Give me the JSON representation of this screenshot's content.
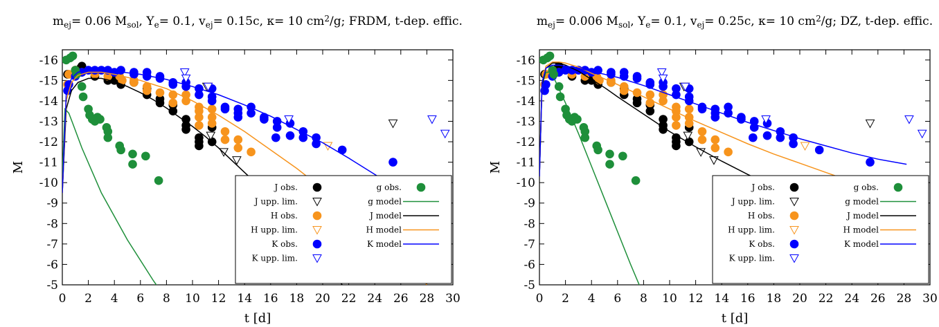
{
  "chart_data": [
    {
      "type": "scatter",
      "title": {
        "m": "m",
        "m_sub": "ej",
        "m_val": "= 0.06 M",
        "m_unit_sub": "sol",
        "ye": ", Y",
        "ye_sub": "e",
        "ye_val": "= 0.1, v",
        "v_sub": "ej",
        "rest": "= 0.15c, κ= 10 cm",
        "sup": "2",
        "tail": "/g; FRDM, t-dep. effic."
      },
      "xlabel": "t [d]",
      "ylabel": "M",
      "xlim": [
        0,
        30
      ],
      "ylim": [
        -16.5,
        -5
      ],
      "y_reversed": true,
      "xticks": [
        0,
        2,
        4,
        6,
        8,
        10,
        12,
        14,
        16,
        18,
        20,
        22,
        24,
        26,
        28,
        30
      ],
      "yticks": [
        -16,
        -15,
        -14,
        -13,
        -12,
        -11,
        -10,
        -9,
        -8,
        -7,
        -6,
        -5
      ],
      "legend": {
        "placement": "bottom-right",
        "left": [
          {
            "label": "J obs.",
            "kind": "dot",
            "color": "#000000"
          },
          {
            "label": "J upp. lim.",
            "kind": "tri",
            "color": "#000000"
          },
          {
            "label": "H obs.",
            "kind": "dot",
            "color": "#f7941d"
          },
          {
            "label": "H upp. lim.",
            "kind": "tri",
            "color": "#f7941d"
          },
          {
            "label": "K obs.",
            "kind": "dot",
            "color": "#0000ff"
          },
          {
            "label": "K upp. lim.",
            "kind": "tri",
            "color": "#0000ff"
          }
        ],
        "right": [
          {
            "label": "g obs.",
            "kind": "dot",
            "color": "#1e8f3a"
          },
          {
            "label": "g model",
            "kind": "line",
            "color": "#1e8f3a"
          },
          {
            "label": "J model",
            "kind": "line",
            "color": "#000000"
          },
          {
            "label": "H model",
            "kind": "line",
            "color": "#f7941d"
          },
          {
            "label": "K model",
            "kind": "line",
            "color": "#0000ff"
          }
        ]
      },
      "models": [
        {
          "name": "g model",
          "color": "#1e8f3a",
          "x": [
            0,
            0.2,
            0.5,
            0.8,
            1.5,
            3,
            5,
            7,
            8
          ],
          "y": [
            -10.3,
            -13.6,
            -13.4,
            -12.9,
            -11.7,
            -9.5,
            -7.2,
            -5.2,
            -4.3
          ]
        },
        {
          "name": "J model",
          "color": "#000000",
          "x": [
            0,
            0.3,
            0.7,
            1.2,
            2,
            3,
            4,
            5,
            6,
            7,
            8,
            9,
            10,
            11,
            12,
            13,
            14,
            15,
            16,
            17,
            18,
            19,
            20,
            21,
            22
          ],
          "y": [
            -9.5,
            -13.6,
            -14.5,
            -14.9,
            -15.1,
            -15.1,
            -14.95,
            -14.7,
            -14.4,
            -14.05,
            -13.65,
            -13.2,
            -12.75,
            -12.25,
            -11.7,
            -11.1,
            -10.5,
            -9.9,
            -9.2,
            -8.5,
            -7.8,
            -7.0,
            -6.2,
            -5.4,
            -4.6
          ]
        },
        {
          "name": "H model",
          "color": "#f7941d",
          "x": [
            0,
            0.3,
            0.7,
            1.2,
            2,
            3,
            4,
            6,
            8,
            10,
            12,
            14,
            16,
            18,
            20,
            22,
            24,
            26,
            28
          ],
          "y": [
            -9.5,
            -14.0,
            -14.9,
            -15.25,
            -15.4,
            -15.4,
            -15.3,
            -15.0,
            -14.6,
            -14.0,
            -13.3,
            -12.5,
            -11.6,
            -10.7,
            -9.7,
            -8.7,
            -7.6,
            -6.5,
            -5.0
          ]
        },
        {
          "name": "K model",
          "color": "#0000ff",
          "x": [
            0,
            0.3,
            0.7,
            1.2,
            2,
            3,
            4,
            6,
            8,
            10,
            12,
            14,
            16,
            18,
            20,
            22,
            24,
            26,
            28,
            29
          ],
          "y": [
            -9.5,
            -14.3,
            -15.1,
            -15.4,
            -15.5,
            -15.5,
            -15.45,
            -15.3,
            -15.05,
            -14.7,
            -14.3,
            -13.8,
            -13.25,
            -12.6,
            -11.95,
            -11.2,
            -10.4,
            -9.6,
            -8.8,
            -8.4
          ]
        }
      ]
    },
    {
      "type": "scatter",
      "title": {
        "m": "m",
        "m_sub": "ej",
        "m_val": "= 0.006 M",
        "m_unit_sub": "sol",
        "ye": ", Y",
        "ye_sub": "e",
        "ye_val": "= 0.1, v",
        "v_sub": "ej",
        "rest": "= 0.25c, κ= 10 cm",
        "sup": "2",
        "tail": "/g; DZ, t-dep. effic."
      },
      "xlabel": "t [d]",
      "ylabel": "M",
      "xlim": [
        0,
        30
      ],
      "ylim": [
        -16.5,
        -5
      ],
      "y_reversed": true,
      "xticks": [
        0,
        2,
        4,
        6,
        8,
        10,
        12,
        14,
        16,
        18,
        20,
        22,
        24,
        26,
        28,
        30
      ],
      "yticks": [
        -16,
        -15,
        -14,
        -13,
        -12,
        -11,
        -10,
        -9,
        -8,
        -7,
        -6,
        -5
      ],
      "legend": {
        "placement": "bottom-right",
        "left": [
          {
            "label": "J obs.",
            "kind": "dot",
            "color": "#000000"
          },
          {
            "label": "J upp. lim.",
            "kind": "tri",
            "color": "#000000"
          },
          {
            "label": "H obs.",
            "kind": "dot",
            "color": "#f7941d"
          },
          {
            "label": "H upp. lim.",
            "kind": "tri",
            "color": "#f7941d"
          },
          {
            "label": "K obs.",
            "kind": "dot",
            "color": "#0000ff"
          },
          {
            "label": "K upp. lim.",
            "kind": "tri",
            "color": "#0000ff"
          }
        ],
        "right": [
          {
            "label": "g obs.",
            "kind": "dot",
            "color": "#1e8f3a"
          },
          {
            "label": "g model",
            "kind": "line",
            "color": "#1e8f3a"
          },
          {
            "label": "J model",
            "kind": "line",
            "color": "#000000"
          },
          {
            "label": "H model",
            "kind": "line",
            "color": "#f7941d"
          },
          {
            "label": "K model",
            "kind": "line",
            "color": "#0000ff"
          }
        ]
      },
      "models": [
        {
          "name": "g model",
          "color": "#1e8f3a",
          "x": [
            0,
            0.2,
            0.5,
            0.8,
            1.2,
            2,
            3,
            4,
            5,
            6,
            7,
            7.8
          ],
          "y": [
            -10.3,
            -14.8,
            -15.4,
            -15.4,
            -15.0,
            -13.9,
            -12.4,
            -10.8,
            -9.2,
            -7.6,
            -6.0,
            -4.8
          ]
        },
        {
          "name": "J model",
          "color": "#000000",
          "x": [
            0,
            0.2,
            0.5,
            1,
            1.5,
            2,
            3,
            4,
            5,
            6,
            8,
            10,
            12,
            14,
            16,
            18,
            20,
            22,
            24,
            26,
            28
          ],
          "y": [
            -10.3,
            -14.8,
            -15.6,
            -15.85,
            -15.85,
            -15.75,
            -15.45,
            -15.05,
            -14.65,
            -14.2,
            -13.35,
            -12.5,
            -11.75,
            -11.05,
            -10.4,
            -9.8,
            -9.3,
            -8.8,
            -8.3,
            -7.8,
            -7.2
          ]
        },
        {
          "name": "H model",
          "color": "#f7941d",
          "x": [
            0,
            0.2,
            0.5,
            1,
            1.5,
            2,
            3,
            4,
            6,
            8,
            10,
            12,
            14,
            16,
            18,
            20,
            22,
            24,
            26,
            28
          ],
          "y": [
            -10.3,
            -14.9,
            -15.7,
            -15.9,
            -15.9,
            -15.85,
            -15.65,
            -15.35,
            -14.8,
            -14.2,
            -13.6,
            -13.0,
            -12.45,
            -11.9,
            -11.4,
            -10.95,
            -10.5,
            -10.05,
            -9.6,
            -9.25
          ]
        },
        {
          "name": "K model",
          "color": "#0000ff",
          "x": [
            0,
            0.2,
            0.5,
            1,
            1.5,
            2,
            3,
            4,
            6,
            8,
            10,
            12,
            14,
            16,
            18,
            20,
            22,
            24,
            26,
            28.2
          ],
          "y": [
            -10.3,
            -14.9,
            -15.6,
            -15.75,
            -15.75,
            -15.7,
            -15.6,
            -15.45,
            -15.15,
            -14.75,
            -14.3,
            -13.85,
            -13.4,
            -12.95,
            -12.55,
            -12.15,
            -11.8,
            -11.45,
            -11.15,
            -10.9
          ]
        }
      ]
    }
  ],
  "observations": {
    "J_obs": {
      "color": "#000000",
      "points": [
        [
          0.4,
          -15.3
        ],
        [
          1.0,
          -15.5
        ],
        [
          1.4,
          -15.6
        ],
        [
          1.5,
          -15.7
        ],
        [
          2.5,
          -15.2
        ],
        [
          3.5,
          -15.0
        ],
        [
          3.7,
          -15.3
        ],
        [
          4.0,
          -15.0
        ],
        [
          4.5,
          -14.8
        ],
        [
          5.5,
          -14.9
        ],
        [
          6.5,
          -14.6
        ],
        [
          6.5,
          -14.3
        ],
        [
          7.5,
          -14.1
        ],
        [
          7.5,
          -13.9
        ],
        [
          8.5,
          -13.8
        ],
        [
          8.5,
          -13.5
        ],
        [
          9.5,
          -13.1
        ],
        [
          9.5,
          -12.8
        ],
        [
          9.5,
          -12.6
        ],
        [
          10.5,
          -12.2
        ],
        [
          10.5,
          -12.0
        ],
        [
          10.5,
          -11.8
        ],
        [
          11.5,
          -12.7
        ],
        [
          11.5,
          -12.0
        ]
      ]
    },
    "H_obs": {
      "color": "#f7941d",
      "points": [
        [
          0.4,
          -14.8
        ],
        [
          0.5,
          -15.3
        ],
        [
          1.0,
          -15.5
        ],
        [
          1.5,
          -15.4
        ],
        [
          2.5,
          -15.3
        ],
        [
          3.5,
          -15.2
        ],
        [
          4.4,
          -15.2
        ],
        [
          4.6,
          -15.0
        ],
        [
          5.5,
          -15.0
        ],
        [
          5.5,
          -14.9
        ],
        [
          6.5,
          -14.5
        ],
        [
          6.5,
          -14.7
        ],
        [
          7.5,
          -14.4
        ],
        [
          8.5,
          -14.3
        ],
        [
          8.5,
          -13.9
        ],
        [
          9.5,
          -14.3
        ],
        [
          9.5,
          -14.0
        ],
        [
          10.5,
          -13.7
        ],
        [
          10.5,
          -13.5
        ],
        [
          10.5,
          -13.2
        ],
        [
          10.5,
          -12.8
        ],
        [
          11.5,
          -13.6
        ],
        [
          11.5,
          -13.2
        ],
        [
          11.5,
          -12.9
        ],
        [
          12.5,
          -12.5
        ],
        [
          12.5,
          -12.1
        ],
        [
          13.5,
          -12.1
        ],
        [
          13.5,
          -11.7
        ],
        [
          14.5,
          -11.5
        ]
      ]
    },
    "K_obs": {
      "color": "#0000ff",
      "points": [
        [
          0.4,
          -14.5
        ],
        [
          0.5,
          -14.8
        ],
        [
          1.0,
          -15.2
        ],
        [
          1.5,
          -15.4
        ],
        [
          2.0,
          -15.5
        ],
        [
          2.5,
          -15.5
        ],
        [
          3.0,
          -15.5
        ],
        [
          3.5,
          -15.5
        ],
        [
          4.0,
          -15.4
        ],
        [
          4.5,
          -15.5
        ],
        [
          5.5,
          -15.3
        ],
        [
          5.5,
          -15.4
        ],
        [
          6.5,
          -15.4
        ],
        [
          6.5,
          -15.2
        ],
        [
          7.5,
          -15.1
        ],
        [
          7.5,
          -15.2
        ],
        [
          8.5,
          -14.9
        ],
        [
          8.5,
          -14.8
        ],
        [
          9.5,
          -14.9
        ],
        [
          9.5,
          -14.7
        ],
        [
          10.5,
          -14.6
        ],
        [
          10.5,
          -14.3
        ],
        [
          11.5,
          -14.6
        ],
        [
          11.5,
          -14.2
        ],
        [
          11.5,
          -14.0
        ],
        [
          12.5,
          -13.7
        ],
        [
          12.5,
          -13.6
        ],
        [
          13.5,
          -13.6
        ],
        [
          13.5,
          -13.4
        ],
        [
          13.5,
          -13.2
        ],
        [
          14.5,
          -13.7
        ],
        [
          14.5,
          -13.4
        ],
        [
          15.5,
          -13.2
        ],
        [
          15.5,
          -13.1
        ],
        [
          16.5,
          -13.0
        ],
        [
          16.5,
          -12.7
        ],
        [
          17.5,
          -12.9
        ],
        [
          17.5,
          -12.3
        ],
        [
          18.5,
          -12.5
        ],
        [
          18.5,
          -12.2
        ],
        [
          19.5,
          -12.2
        ],
        [
          19.5,
          -11.9
        ],
        [
          16.4,
          -12.2
        ],
        [
          21.5,
          -11.6
        ],
        [
          25.4,
          -11.0
        ]
      ]
    },
    "g_obs": {
      "color": "#1e8f3a",
      "points": [
        [
          0.3,
          -16.0
        ],
        [
          0.6,
          -16.1
        ],
        [
          0.8,
          -16.2
        ],
        [
          1.0,
          -15.5
        ],
        [
          1.1,
          -15.3
        ],
        [
          1.5,
          -14.7
        ],
        [
          1.6,
          -14.2
        ],
        [
          2.0,
          -13.6
        ],
        [
          2.1,
          -13.3
        ],
        [
          2.3,
          -13.1
        ],
        [
          2.5,
          -13.0
        ],
        [
          2.7,
          -13.2
        ],
        [
          2.9,
          -13.1
        ],
        [
          3.4,
          -12.7
        ],
        [
          3.5,
          -12.5
        ],
        [
          3.5,
          -12.2
        ],
        [
          4.4,
          -11.8
        ],
        [
          4.5,
          -11.6
        ],
        [
          5.4,
          -11.4
        ],
        [
          5.4,
          -10.9
        ],
        [
          6.4,
          -11.3
        ],
        [
          7.4,
          -10.1
        ]
      ]
    },
    "J_upp": {
      "color": "#000000",
      "points": [
        [
          11.1,
          -14.7
        ],
        [
          11.4,
          -12.3
        ],
        [
          12.4,
          -11.5
        ],
        [
          13.4,
          -11.1
        ],
        [
          25.4,
          -12.9
        ]
      ]
    },
    "H_upp": {
      "color": "#f7941d",
      "points": [
        [
          11.2,
          -14.7
        ],
        [
          20.4,
          -11.8
        ]
      ]
    },
    "K_upp": {
      "color": "#0000ff",
      "points": [
        [
          9.4,
          -15.4
        ],
        [
          9.5,
          -15.1
        ],
        [
          11.2,
          -14.7
        ],
        [
          17.4,
          -13.1
        ],
        [
          28.4,
          -13.1
        ],
        [
          29.4,
          -12.4
        ]
      ]
    }
  }
}
